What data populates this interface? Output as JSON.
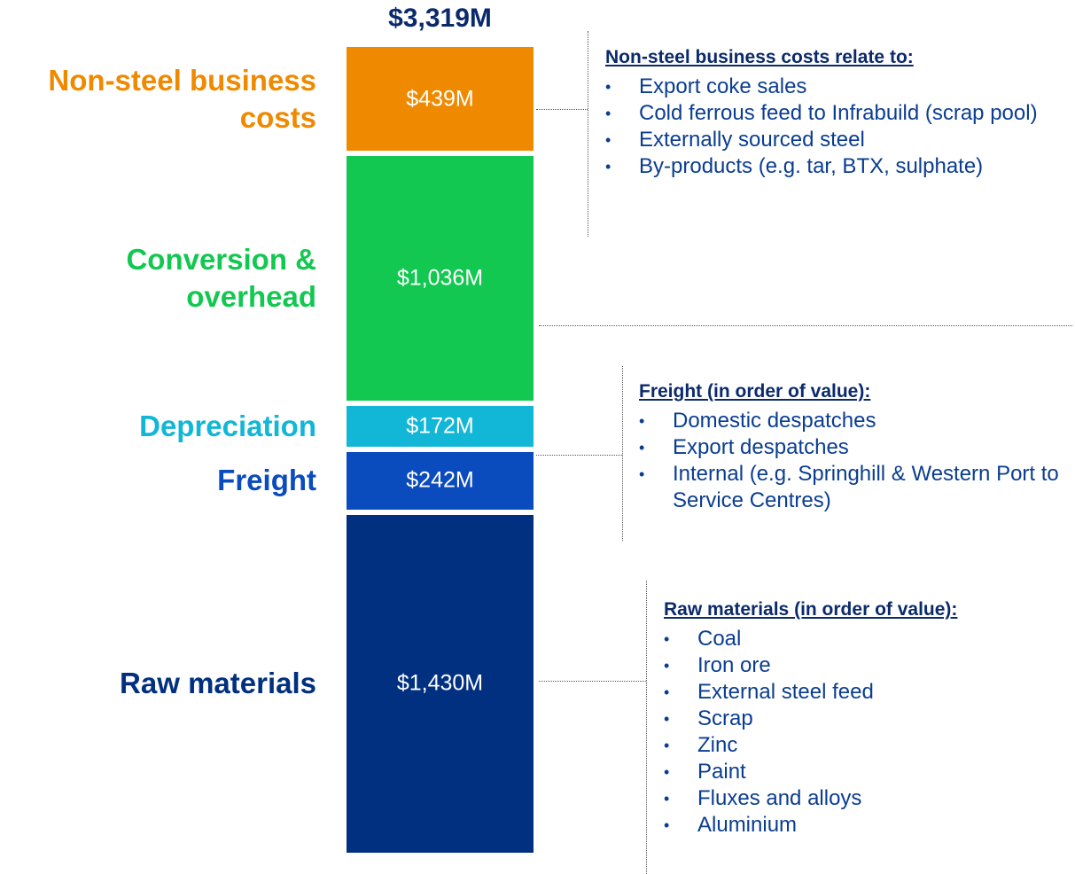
{
  "chart_data": {
    "type": "stacked_bar",
    "total": {
      "value": 3319,
      "label": "$3,319M"
    },
    "series": [
      {
        "name": "Raw materials",
        "color": "#00307f",
        "values": [
          1430
        ],
        "value_labels": [
          "$1,430M"
        ]
      },
      {
        "name": "Freight",
        "color": "#0a4bbd",
        "values": [
          242
        ],
        "value_labels": [
          "$242M"
        ]
      },
      {
        "name": "Depreciation",
        "color": "#12b6d6",
        "values": [
          172
        ],
        "value_labels": [
          "$172M"
        ]
      },
      {
        "name": "Conversion & overhead",
        "color": "#12c850",
        "values": [
          1036
        ],
        "value_labels": [
          "$1,036M"
        ]
      },
      {
        "name": "Non-steel business costs",
        "color": "#ef8a00",
        "values": [
          439
        ],
        "value_labels": [
          "$439M"
        ]
      }
    ],
    "annotations": [
      {
        "title": "Non-steel business costs relate to:",
        "items": [
          "Export coke sales",
          "Cold ferrous feed to Infrabuild (scrap pool)",
          "Externally sourced steel",
          "By-products (e.g. tar, BTX, sulphate)"
        ]
      },
      {
        "title": "Freight (in order of value):",
        "items": [
          "Domestic despatches",
          "Export despatches",
          "Internal (e.g. Springhill & Western Port to Service Centres)"
        ]
      },
      {
        "title": "Raw materials (in order of value):",
        "items": [
          "Coal",
          "Iron ore",
          "External steel feed",
          "Scrap",
          "Zinc",
          "Paint",
          "Fluxes and alloys",
          "Aluminium"
        ]
      }
    ]
  }
}
